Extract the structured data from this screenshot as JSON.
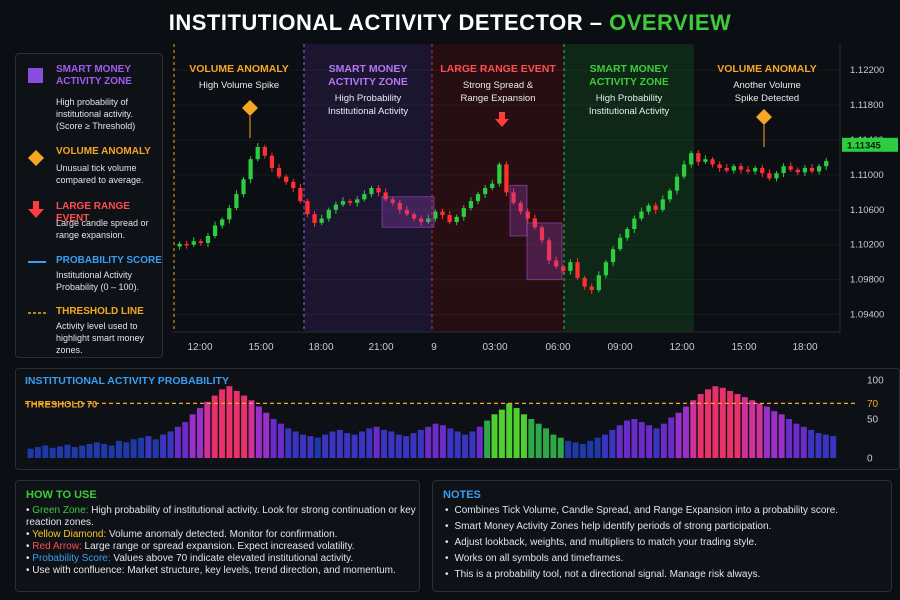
{
  "title": {
    "part1": "INSTITUTIONAL ACTIVITY DETECTOR –",
    "part2": "OVERVIEW"
  },
  "legend": [
    {
      "head": "SMART MONEY ACTIVITY ZONE",
      "desc": "High probability of institutional activity. (Score ≥ Threshold)",
      "color": "#a05cf0",
      "icon": "purple-square-icon"
    },
    {
      "head": "VOLUME ANOMALY",
      "desc": "Unusual tick volume compared to average.",
      "color": "#f5a623",
      "icon": "yellow-diamond-icon"
    },
    {
      "head": "LARGE RANGE EVENT",
      "desc": "Large candle spread or range expansion.",
      "color": "#ff4d4d",
      "icon": "red-arrow-icon"
    },
    {
      "head": "PROBABILITY SCORE",
      "desc": "Institutional Activity Probability (0 – 100).",
      "color": "#3a9df0",
      "icon": "blue-line-icon"
    },
    {
      "head": "THRESHOLD LINE",
      "desc": "Activity level used to highlight smart money zones.",
      "color": "#f5a623",
      "icon": "orange-dashed-line-icon"
    }
  ],
  "zones": [
    {
      "head": "VOLUME ANOMALY",
      "sub": "High Volume Spike",
      "head_color": "#f5a623"
    },
    {
      "head": "SMART MONEY ACTIVITY ZONE",
      "sub": "High Probability Institutional Activity",
      "head_color": "#b277f5"
    },
    {
      "head": "LARGE RANGE EVENT",
      "sub": "Strong Spread & Range Expansion",
      "head_color": "#ff4d4d"
    },
    {
      "head": "SMART MONEY ACTIVITY ZONE",
      "sub": "High Probability Institutional Activity",
      "head_color": "#3fca3a"
    },
    {
      "head": "VOLUME ANOMALY",
      "sub": "Another Volume Spike Detected",
      "head_color": "#f5a623"
    }
  ],
  "chart_data": [
    {
      "type": "candlestick",
      "price_axis_ticks": [
        "1.12200",
        "1.11800",
        "1.11400",
        "1.11000",
        "1.10600",
        "1.10200",
        "1.09800",
        "1.09400"
      ],
      "current_price": "1.11345",
      "time_ticks": [
        "12:00",
        "15:00",
        "18:00",
        "21:00",
        "9",
        "03:00",
        "06:00",
        "09:00",
        "12:00",
        "15:00",
        "18:00"
      ],
      "close": [
        1.1021,
        1.102,
        1.1024,
        1.1022,
        1.103,
        1.1042,
        1.1049,
        1.1062,
        1.1078,
        1.1095,
        1.1118,
        1.1132,
        1.1122,
        1.1108,
        1.1098,
        1.1092,
        1.1085,
        1.107,
        1.1055,
        1.1045,
        1.105,
        1.106,
        1.1066,
        1.107,
        1.1068,
        1.1072,
        1.1078,
        1.1085,
        1.108,
        1.1072,
        1.1068,
        1.106,
        1.1055,
        1.105,
        1.1046,
        1.105,
        1.1058,
        1.1054,
        1.1046,
        1.1052,
        1.1062,
        1.107,
        1.1078,
        1.1085,
        1.109,
        1.1112,
        1.108,
        1.1068,
        1.1058,
        1.105,
        1.104,
        1.1025,
        1.1002,
        1.0995,
        1.099,
        1.1,
        1.0982,
        1.0972,
        1.0968,
        1.0985,
        1.1,
        1.1015,
        1.1028,
        1.1038,
        1.105,
        1.1058,
        1.1065,
        1.106,
        1.1072,
        1.1082,
        1.1098,
        1.1112,
        1.1125,
        1.1115,
        1.1118,
        1.1112,
        1.1108,
        1.1105,
        1.111,
        1.1106,
        1.1104,
        1.1108,
        1.1102,
        1.1096,
        1.1102,
        1.111,
        1.1106,
        1.1103,
        1.1108,
        1.1104,
        1.111,
        1.1116
      ],
      "current_price_value": 1.11345
    },
    {
      "type": "bar",
      "title": "INSTITUTIONAL ACTIVITY PROBABILITY",
      "threshold": 70,
      "threshold_label": "THRESHOLD 70",
      "y_ticks": [
        "100",
        "70",
        "50",
        "0"
      ],
      "ylim": [
        0,
        100
      ],
      "values": [
        12,
        14,
        16,
        13,
        15,
        17,
        14,
        16,
        18,
        20,
        18,
        16,
        22,
        20,
        24,
        26,
        28,
        24,
        30,
        34,
        40,
        46,
        56,
        64,
        72,
        80,
        88,
        92,
        86,
        80,
        74,
        66,
        58,
        50,
        44,
        38,
        34,
        30,
        28,
        26,
        30,
        34,
        36,
        32,
        30,
        34,
        38,
        40,
        36,
        34,
        30,
        28,
        32,
        36,
        40,
        44,
        42,
        38,
        34,
        30,
        34,
        40,
        48,
        56,
        62,
        70,
        64,
        56,
        50,
        44,
        38,
        30,
        26,
        22,
        20,
        18,
        22,
        26,
        30,
        36,
        42,
        48,
        50,
        46,
        42,
        38,
        44,
        52,
        58,
        66,
        74,
        82,
        88,
        92,
        90,
        86,
        82,
        78,
        74,
        70,
        66,
        60,
        56,
        50,
        44,
        40,
        36,
        32,
        30,
        28
      ]
    }
  ],
  "how_to_use": {
    "title": "HOW TO USE",
    "items": [
      {
        "label": "Green Zone:",
        "text": " High probability of institutional activity. Look for strong continuation or key reaction zones.",
        "color": "#3fca3a"
      },
      {
        "label": "Yellow Diamond:",
        "text": " Volume anomaly detected. Monitor for confirmation.",
        "color": "#f5c623"
      },
      {
        "label": "Red Arrow:",
        "text": " Large range or spread expansion. Expect increased volatility.",
        "color": "#ff4d4d"
      },
      {
        "label": "Probability Score:",
        "text": " Values above 70 indicate elevated institutional activity.",
        "color": "#3a9df0"
      },
      {
        "label": "",
        "text": "Use with confluence: Market structure, key levels, trend direction, and momentum.",
        "color": "#e1e5ea"
      }
    ]
  },
  "notes": {
    "title": "NOTES",
    "items": [
      "Combines Tick Volume, Candle Spread, and Range Expansion into a probability score.",
      "Smart Money Activity Zones help identify periods of strong participation.",
      "Adjust lookback, weights, and multipliers to match your trading style.",
      "Works on all symbols and timeframes.",
      "This is a probability tool, not a directional signal. Manage risk always."
    ]
  }
}
